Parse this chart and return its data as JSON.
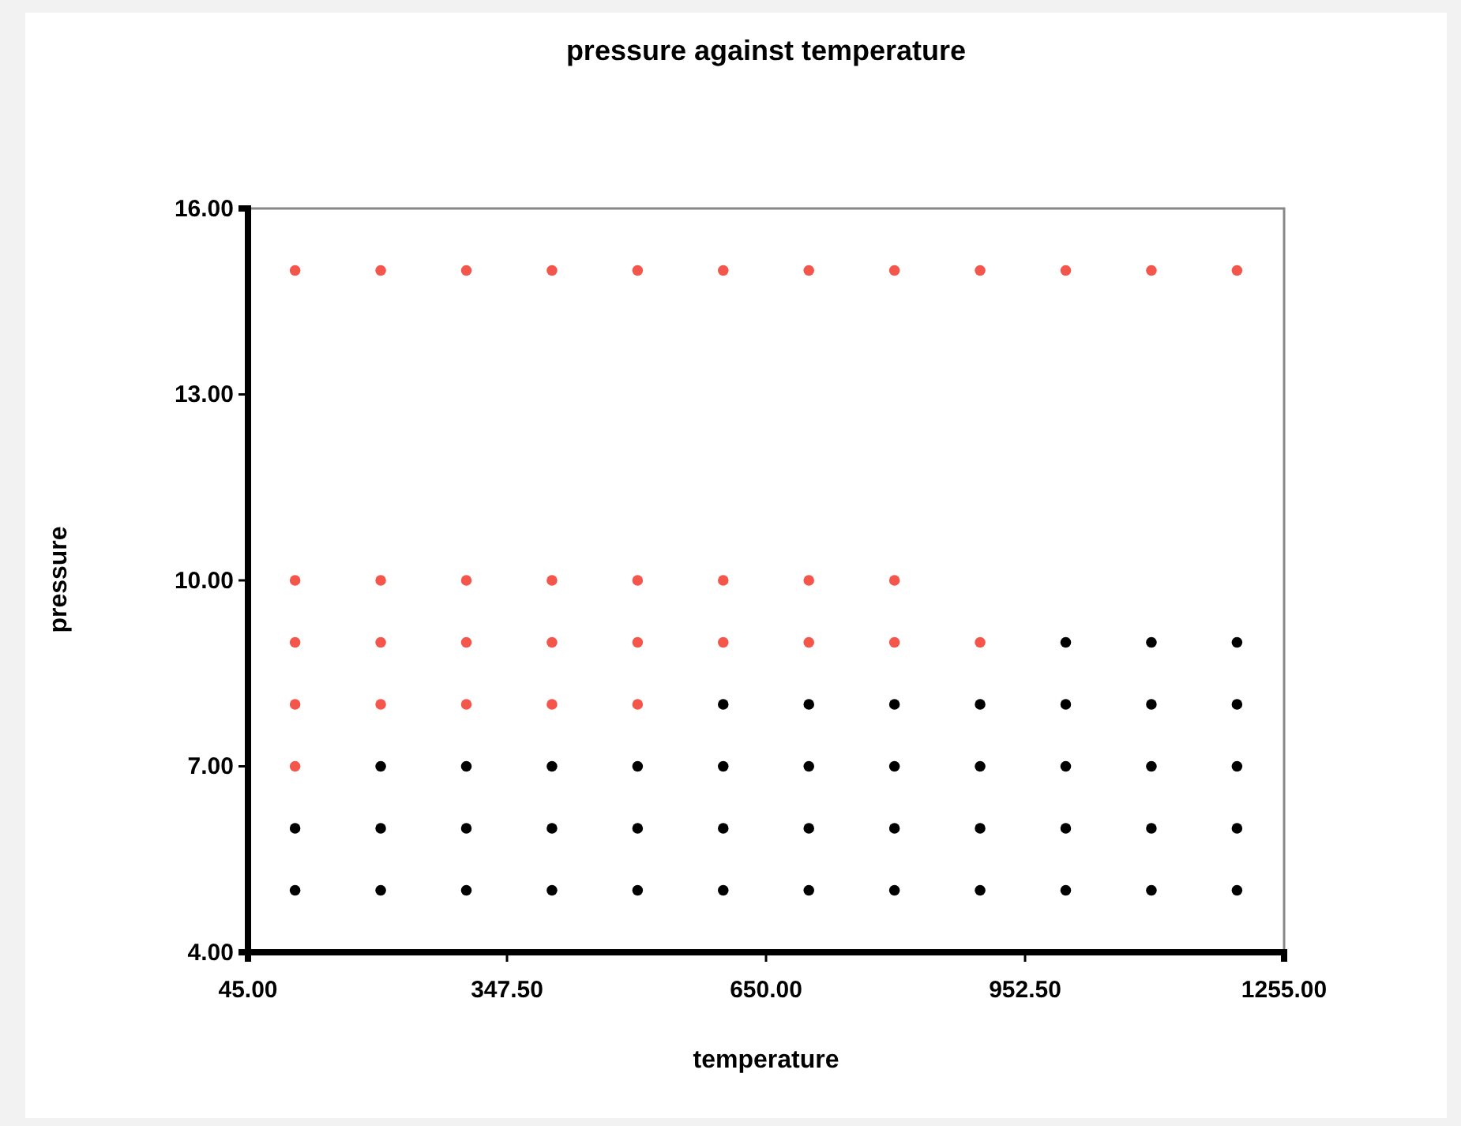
{
  "chart_data": {
    "type": "scatter",
    "title": "pressure against temperature",
    "xlabel": "temperature",
    "ylabel": "pressure",
    "xlim": [
      45,
      1255
    ],
    "ylim": [
      4,
      16
    ],
    "xticks": [
      {
        "value": 45,
        "label": "45.00"
      },
      {
        "value": 347.5,
        "label": "347.50"
      },
      {
        "value": 650,
        "label": "650.00"
      },
      {
        "value": 952.5,
        "label": "952.50"
      },
      {
        "value": 1255,
        "label": "1255.00"
      }
    ],
    "yticks": [
      {
        "value": 4,
        "label": "4.00"
      },
      {
        "value": 7,
        "label": "7.00"
      },
      {
        "value": 10,
        "label": "10.00"
      },
      {
        "value": 13,
        "label": "13.00"
      },
      {
        "value": 16,
        "label": "16.00"
      }
    ],
    "grid": false,
    "marker": "circle",
    "series": [
      {
        "color": "#f4564b",
        "x": [
          100,
          200,
          300,
          400,
          500,
          600,
          700,
          800,
          900,
          1000,
          1100,
          1200,
          100,
          200,
          300,
          400,
          500,
          600,
          700,
          800,
          100,
          200,
          300,
          400,
          500,
          600,
          700,
          800,
          900,
          100,
          200,
          300,
          400,
          500,
          100
        ],
        "values": [
          15,
          15,
          15,
          15,
          15,
          15,
          15,
          15,
          15,
          15,
          15,
          15,
          10,
          10,
          10,
          10,
          10,
          10,
          10,
          10,
          9,
          9,
          9,
          9,
          9,
          9,
          9,
          9,
          9,
          8,
          8,
          8,
          8,
          8,
          7
        ]
      },
      {
        "color": "#000000",
        "x": [
          100,
          200,
          300,
          400,
          500,
          600,
          700,
          800,
          900,
          1000,
          1100,
          1200,
          100,
          200,
          300,
          400,
          500,
          600,
          700,
          800,
          900,
          1000,
          1100,
          1200,
          200,
          300,
          400,
          500,
          600,
          700,
          800,
          900,
          1000,
          1100,
          1200,
          600,
          700,
          800,
          900,
          1000,
          1100,
          1200,
          1000,
          1100,
          1200
        ],
        "values": [
          5,
          5,
          5,
          5,
          5,
          5,
          5,
          5,
          5,
          5,
          5,
          5,
          6,
          6,
          6,
          6,
          6,
          6,
          6,
          6,
          6,
          6,
          6,
          6,
          7,
          7,
          7,
          7,
          7,
          7,
          7,
          7,
          7,
          7,
          7,
          8,
          8,
          8,
          8,
          8,
          8,
          8,
          9,
          9,
          9
        ]
      }
    ]
  }
}
